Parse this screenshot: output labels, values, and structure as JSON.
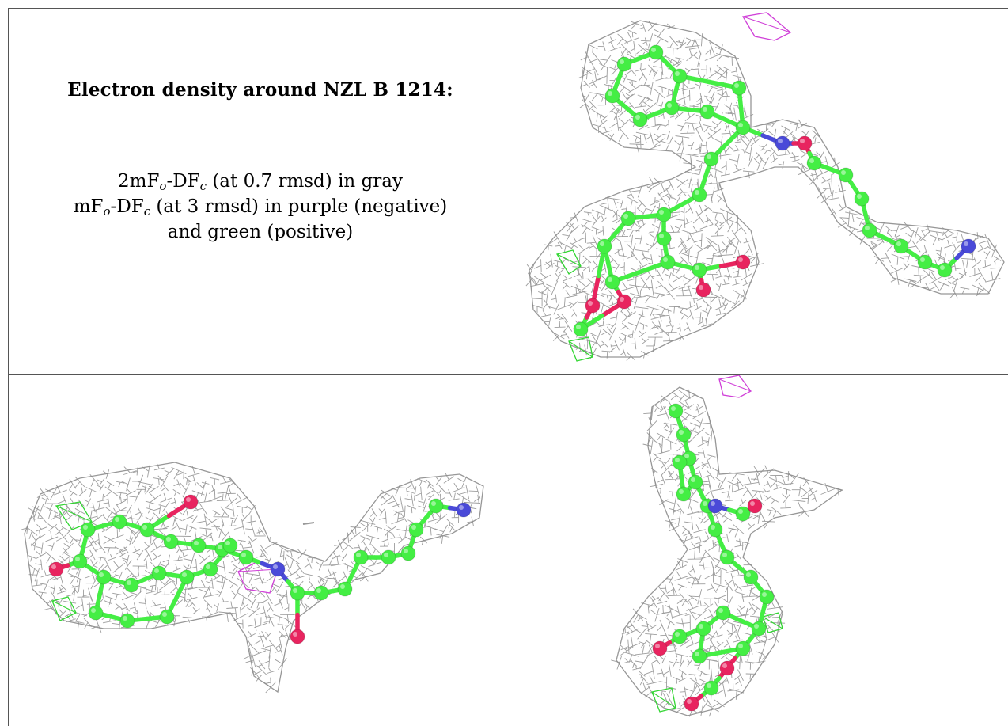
{
  "caption": {
    "title": "Electron density around NZL B 1214:",
    "line1": {
      "a": "2mF",
      "sub_a": "o",
      "b": "-DF",
      "sub_b": "c",
      "rest": " (at 0.7 rmsd) in gray"
    },
    "line2": {
      "a": "mF",
      "sub_a": "o",
      "b": "-DF",
      "sub_b": "c",
      "rest": " (at 3 rmsd) in purple (negative)"
    },
    "line3": "and green (positive)"
  },
  "colors": {
    "mesh_2fofc": "#8c8c8c",
    "mesh_negative": "#d040d8",
    "mesh_positive": "#33d633",
    "carbon": "#44ee44",
    "nitrogen": "#4a4ad8",
    "oxygen": "#e8245f",
    "frame": "#555555"
  },
  "views": [
    {
      "id": "view-top-right"
    },
    {
      "id": "view-bottom-left"
    },
    {
      "id": "view-bottom-right"
    }
  ]
}
